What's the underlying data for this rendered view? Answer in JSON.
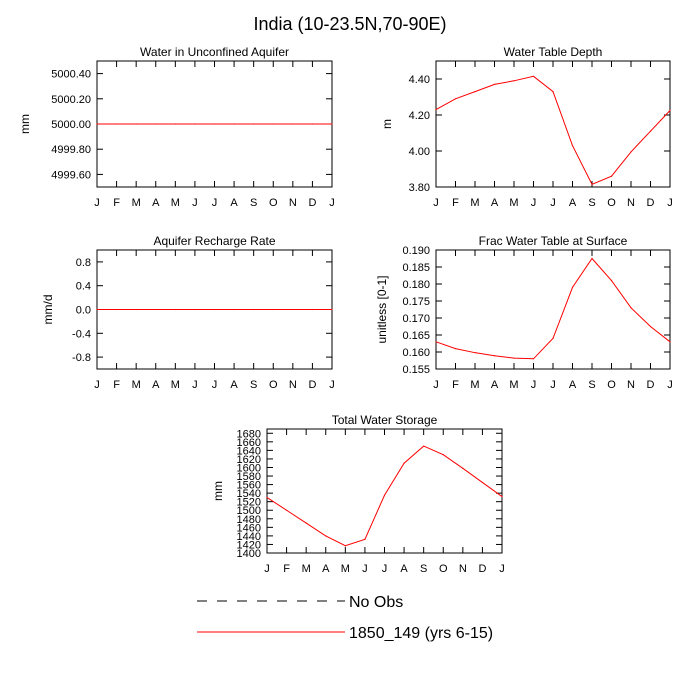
{
  "figure": {
    "title": "India (10-23.5N,70-90E)"
  },
  "chart_data": [
    {
      "type": "line",
      "title": "Water in Unconfined Aquifer",
      "xlabel": "",
      "ylabel": "mm",
      "categories": [
        "J",
        "F",
        "M",
        "A",
        "M",
        "J",
        "J",
        "A",
        "S",
        "O",
        "N",
        "D",
        "J"
      ],
      "ylim": [
        4999.5,
        5000.5
      ],
      "yticks": [
        4999.6,
        4999.8,
        5000.0,
        5000.2,
        5000.4
      ],
      "ytick_labels": [
        "4999.60",
        "4999.80",
        "5000.00",
        "5000.20",
        "5000.40"
      ],
      "series": [
        {
          "name": "1850_149 (yrs 6-15)",
          "values": [
            5000,
            5000,
            5000,
            5000,
            5000,
            5000,
            5000,
            5000,
            5000,
            5000,
            5000,
            5000,
            5000
          ]
        }
      ]
    },
    {
      "type": "line",
      "title": "Water Table Depth",
      "xlabel": "",
      "ylabel": "m",
      "categories": [
        "J",
        "F",
        "M",
        "A",
        "M",
        "J",
        "J",
        "A",
        "S",
        "O",
        "N",
        "D",
        "J"
      ],
      "ylim": [
        3.8,
        4.5
      ],
      "yticks": [
        3.8,
        4.0,
        4.2,
        4.4
      ],
      "ytick_labels": [
        "3.80",
        "4.00",
        "4.20",
        "4.40"
      ],
      "series": [
        {
          "name": "1850_149 (yrs 6-15)",
          "values": [
            4.23,
            4.29,
            4.33,
            4.37,
            4.39,
            4.415,
            4.33,
            4.03,
            3.815,
            3.86,
            3.995,
            4.11,
            4.225
          ]
        }
      ]
    },
    {
      "type": "line",
      "title": "Aquifer Recharge Rate",
      "xlabel": "",
      "ylabel": "mm/d",
      "categories": [
        "J",
        "F",
        "M",
        "A",
        "M",
        "J",
        "J",
        "A",
        "S",
        "O",
        "N",
        "D",
        "J"
      ],
      "ylim": [
        -1.0,
        1.0
      ],
      "yticks": [
        -0.8,
        -0.4,
        0.0,
        0.4,
        0.8
      ],
      "ytick_labels": [
        "-0.8",
        "-0.4",
        "0.0",
        "0.4",
        "0.8"
      ],
      "series": [
        {
          "name": "1850_149 (yrs 6-15)",
          "values": [
            0,
            0,
            0,
            0,
            0,
            0,
            0,
            0,
            0,
            0,
            0,
            0,
            0
          ]
        }
      ]
    },
    {
      "type": "line",
      "title": "Frac Water Table at Surface",
      "xlabel": "",
      "ylabel": "unitless [0-1]",
      "categories": [
        "J",
        "F",
        "M",
        "A",
        "M",
        "J",
        "J",
        "A",
        "S",
        "O",
        "N",
        "D",
        "J"
      ],
      "ylim": [
        0.155,
        0.19
      ],
      "yticks": [
        0.155,
        0.16,
        0.165,
        0.17,
        0.175,
        0.18,
        0.185,
        0.19
      ],
      "ytick_labels": [
        "0.155",
        "0.160",
        "0.165",
        "0.170",
        "0.175",
        "0.180",
        "0.185",
        "0.190"
      ],
      "series": [
        {
          "name": "1850_149 (yrs 6-15)",
          "values": [
            0.163,
            0.161,
            0.1598,
            0.1589,
            0.1582,
            0.158,
            0.164,
            0.179,
            0.1875,
            0.181,
            0.173,
            0.1675,
            0.163
          ]
        }
      ]
    },
    {
      "type": "line",
      "title": "Total Water Storage",
      "xlabel": "",
      "ylabel": "mm",
      "categories": [
        "J",
        "F",
        "M",
        "A",
        "M",
        "J",
        "J",
        "A",
        "S",
        "O",
        "N",
        "D",
        "J"
      ],
      "ylim": [
        1400,
        1690
      ],
      "yticks": [
        1400,
        1420,
        1440,
        1460,
        1480,
        1500,
        1520,
        1540,
        1560,
        1580,
        1600,
        1620,
        1640,
        1660,
        1680
      ],
      "ytick_labels": [
        "1400",
        "1420",
        "1440",
        "1460",
        "1480",
        "1500",
        "1520",
        "1540",
        "1560",
        "1580",
        "1600",
        "1620",
        "1640",
        "1660",
        "1680"
      ],
      "series": [
        {
          "name": "1850_149 (yrs 6-15)",
          "values": [
            1530,
            1500,
            1470,
            1440,
            1417,
            1432,
            1535,
            1610,
            1650,
            1630,
            1598,
            1565,
            1532
          ]
        }
      ]
    }
  ],
  "legend": {
    "items": [
      {
        "label": "No Obs",
        "color": "#000000",
        "style": "dashed"
      },
      {
        "label": "1850_149 (yrs 6-15)",
        "color": "#ff0000",
        "style": "solid"
      }
    ]
  }
}
